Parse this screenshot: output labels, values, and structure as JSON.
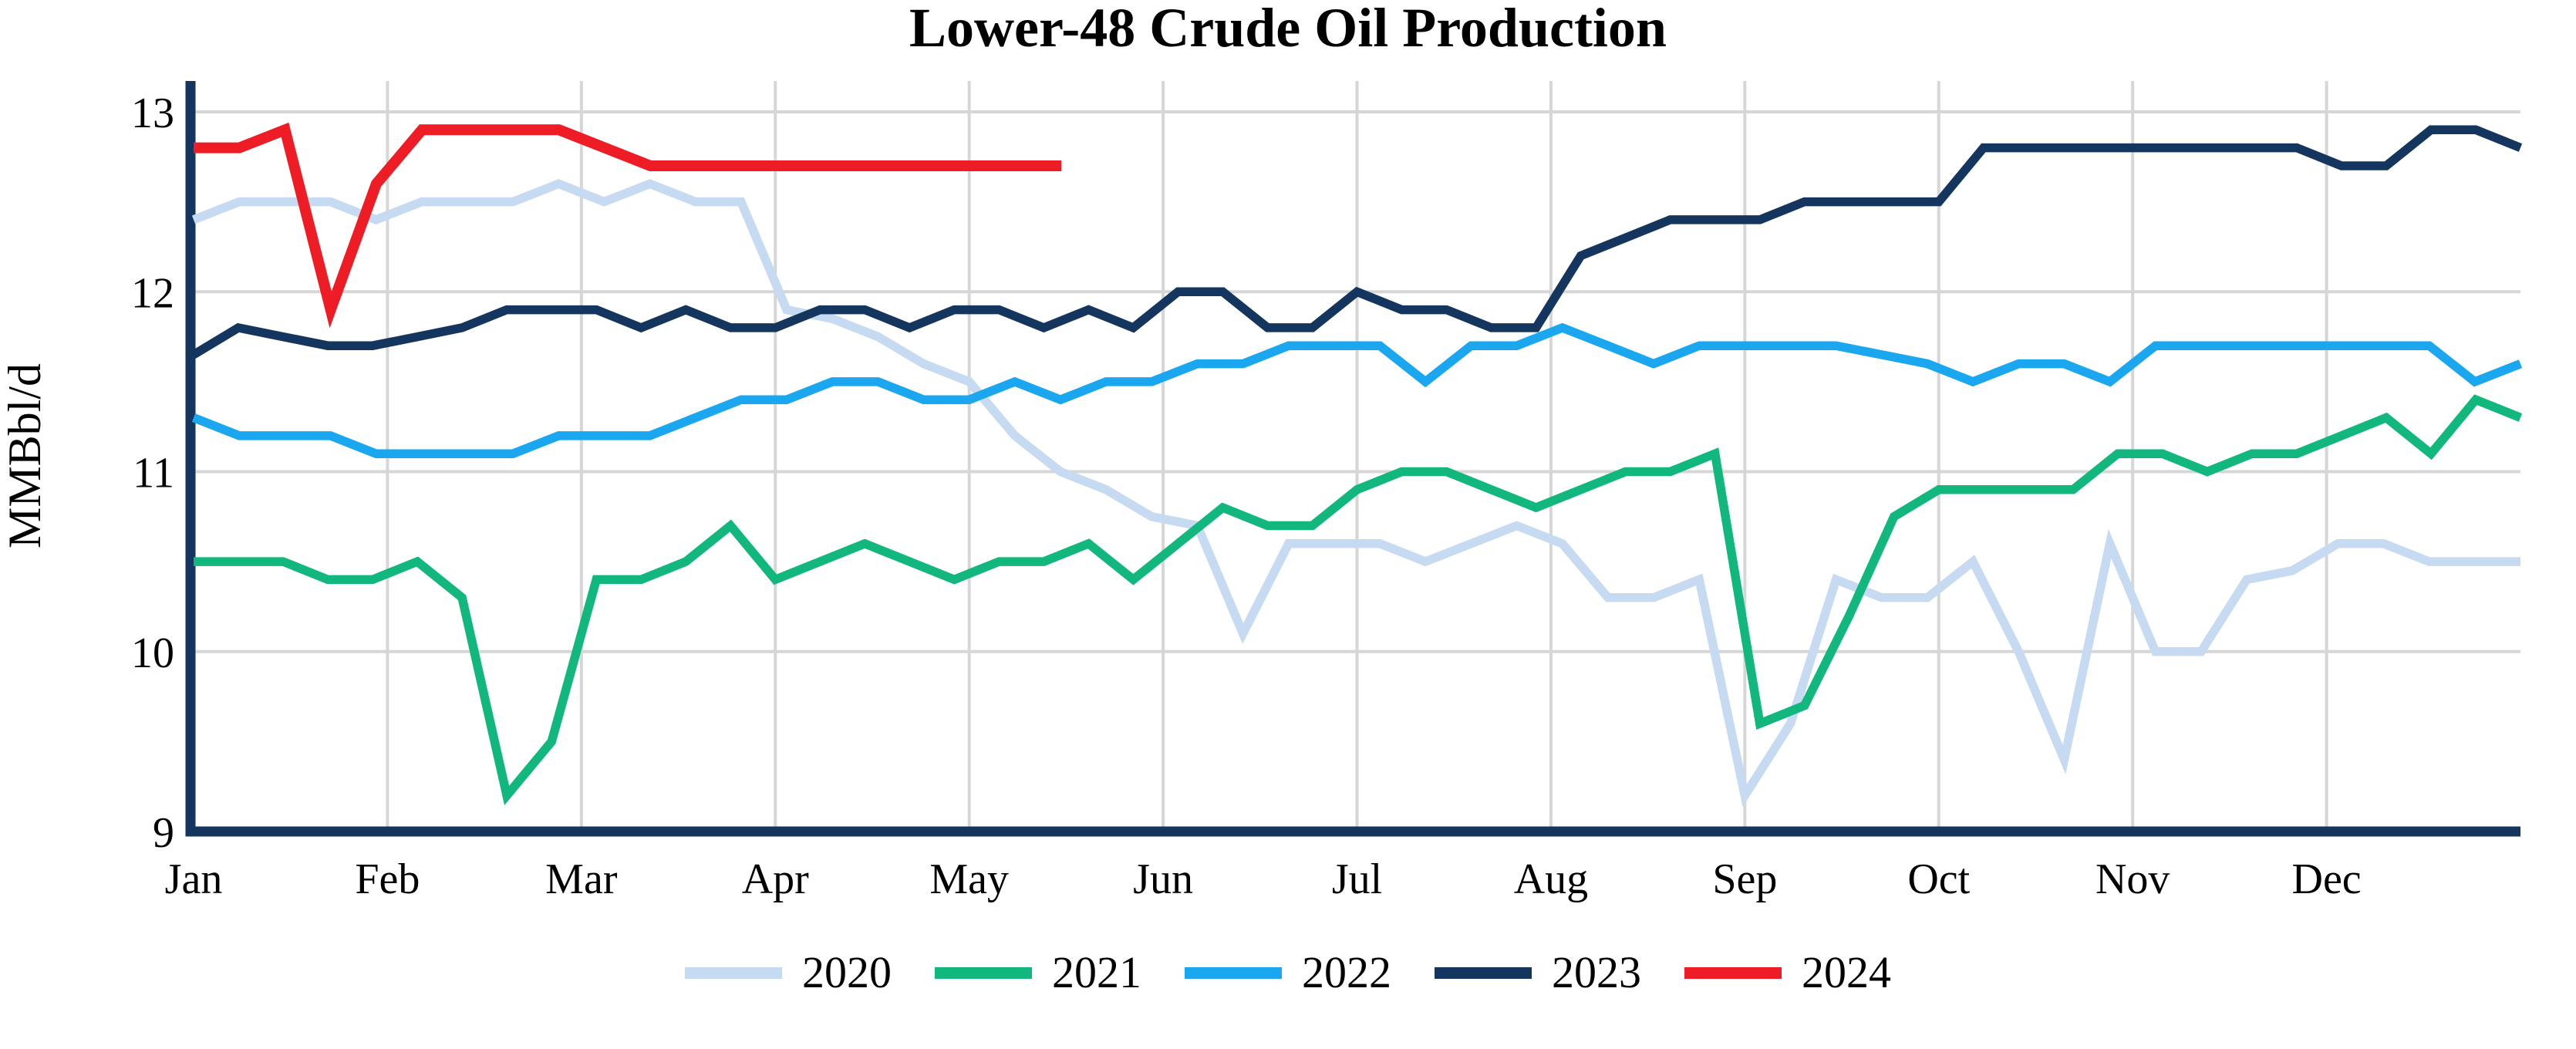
{
  "chart_data": {
    "type": "line",
    "title": "Lower-48 Crude Oil Production",
    "xlabel": "",
    "ylabel": "MMBbl/d",
    "ylim": [
      9,
      13
    ],
    "y_ticks": [
      9,
      10,
      11,
      12,
      13
    ],
    "x_tick_labels": [
      "Jan",
      "Feb",
      "Mar",
      "Apr",
      "May",
      "Jun",
      "Jul",
      "Aug",
      "Sep",
      "Oct",
      "Nov",
      "Dec"
    ],
    "x_unit": "weekly observations across one year",
    "grid": "on",
    "legend_position": "bottom-center",
    "axis_color": "#14365E",
    "gridline_color": "#D6D6D6",
    "series": [
      {
        "name": "2020",
        "color": "#C6DBF1",
        "x_end_fraction": 1,
        "values": [
          12.4,
          12.5,
          12.5,
          12.5,
          12.4,
          12.5,
          12.5,
          12.5,
          12.6,
          12.5,
          12.6,
          12.5,
          12.5,
          11.9,
          11.85,
          11.75,
          11.6,
          11.5,
          11.2,
          11.0,
          10.9,
          10.75,
          10.7,
          10.1,
          10.6,
          10.6,
          10.6,
          10.5,
          10.6,
          10.7,
          10.6,
          10.3,
          10.3,
          10.4,
          9.2,
          9.6,
          10.4,
          10.3,
          10.3,
          10.5,
          10.0,
          9.4,
          10.6,
          10.0,
          10.0,
          10.4,
          10.45,
          10.6,
          10.6,
          10.5,
          10.5,
          10.5
        ]
      },
      {
        "name": "2021",
        "color": "#12B77E",
        "x_end_fraction": 1,
        "values": [
          10.5,
          10.5,
          10.5,
          10.4,
          10.4,
          10.5,
          10.3,
          9.2,
          9.5,
          10.4,
          10.4,
          10.5,
          10.7,
          10.4,
          10.5,
          10.6,
          10.5,
          10.4,
          10.5,
          10.5,
          10.6,
          10.4,
          10.6,
          10.8,
          10.7,
          10.7,
          10.9,
          11.0,
          11.0,
          10.9,
          10.8,
          10.9,
          11.0,
          11.0,
          11.1,
          9.6,
          9.7,
          10.2,
          10.75,
          10.9,
          10.9,
          10.9,
          10.9,
          11.1,
          11.1,
          11.0,
          11.1,
          11.1,
          11.2,
          11.3,
          11.1,
          11.4,
          11.3
        ]
      },
      {
        "name": "2022",
        "color": "#1AA7F0",
        "x_end_fraction": 1,
        "values": [
          11.3,
          11.2,
          11.2,
          11.2,
          11.1,
          11.1,
          11.1,
          11.1,
          11.2,
          11.2,
          11.2,
          11.3,
          11.4,
          11.4,
          11.5,
          11.5,
          11.4,
          11.4,
          11.5,
          11.4,
          11.5,
          11.5,
          11.6,
          11.6,
          11.7,
          11.7,
          11.7,
          11.5,
          11.7,
          11.7,
          11.8,
          11.7,
          11.6,
          11.7,
          11.7,
          11.7,
          11.7,
          11.65,
          11.6,
          11.5,
          11.6,
          11.6,
          11.5,
          11.7,
          11.7,
          11.7,
          11.7,
          11.7,
          11.7,
          11.7,
          11.5,
          11.6
        ]
      },
      {
        "name": "2023",
        "color": "#14365E",
        "x_end_fraction": 1,
        "values": [
          11.65,
          11.8,
          11.75,
          11.7,
          11.7,
          11.75,
          11.8,
          11.9,
          11.9,
          11.9,
          11.8,
          11.9,
          11.8,
          11.8,
          11.9,
          11.9,
          11.8,
          11.9,
          11.9,
          11.8,
          11.9,
          11.8,
          12.0,
          12.0,
          11.8,
          11.8,
          12.0,
          11.9,
          11.9,
          11.8,
          11.8,
          12.2,
          12.3,
          12.4,
          12.4,
          12.4,
          12.5,
          12.5,
          12.5,
          12.5,
          12.8,
          12.8,
          12.8,
          12.8,
          12.8,
          12.8,
          12.8,
          12.8,
          12.7,
          12.7,
          12.9,
          12.9,
          12.8
        ]
      },
      {
        "name": "2024",
        "color": "#EE1C25",
        "x_end_fraction": 0.373,
        "values": [
          12.8,
          12.8,
          12.9,
          11.9,
          12.6,
          12.9,
          12.9,
          12.9,
          12.9,
          12.8,
          12.7,
          12.7,
          12.7,
          12.7,
          12.7,
          12.7,
          12.7,
          12.7,
          12.7,
          12.7
        ]
      }
    ]
  }
}
